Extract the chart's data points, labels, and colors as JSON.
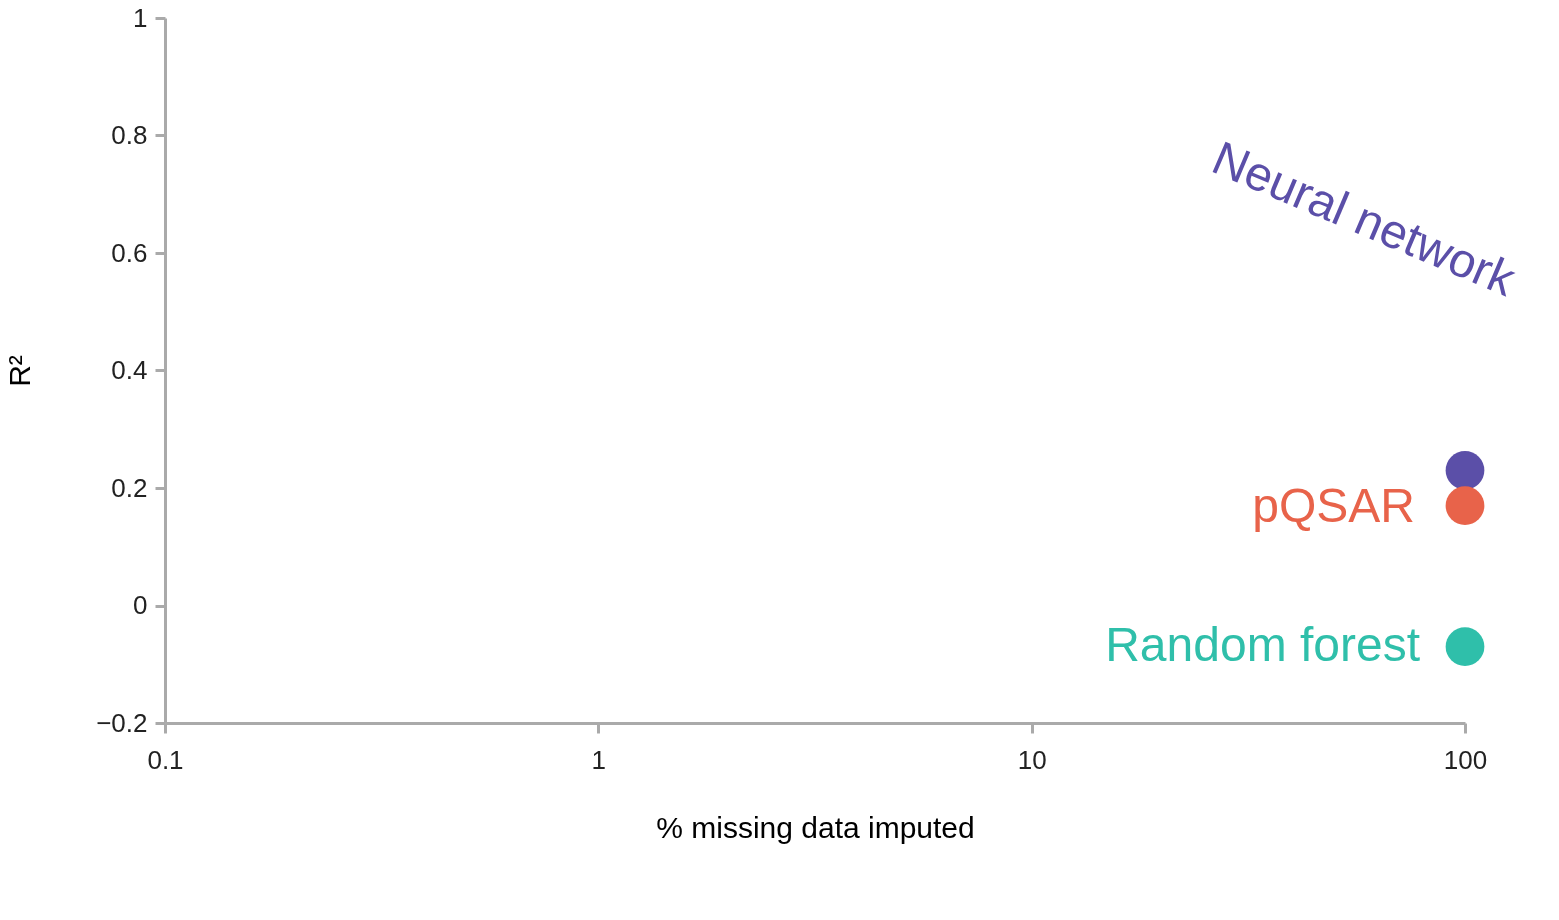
{
  "chart_data": {
    "type": "scatter",
    "xlabel": "% missing data imputed",
    "ylabel": "R²",
    "log": "x",
    "x": [
      100
    ],
    "series": [
      {
        "name": "Neural network",
        "color": "#5b4fa8",
        "values": [
          0.23
        ]
      },
      {
        "name": "pQSAR",
        "color": "#e8634a",
        "values": [
          0.17
        ]
      },
      {
        "name": "Random forest",
        "color": "#2fbfaa",
        "values": [
          -0.07
        ]
      }
    ],
    "xlim": [
      0.1,
      100
    ],
    "xticks": [
      0.1,
      1,
      10,
      100
    ],
    "ylim": [
      -0.2,
      1
    ],
    "yticks": [
      -0.2,
      0,
      0.2,
      0.4,
      0.6,
      0.8,
      1
    ],
    "grid": false,
    "marker": "circle"
  }
}
